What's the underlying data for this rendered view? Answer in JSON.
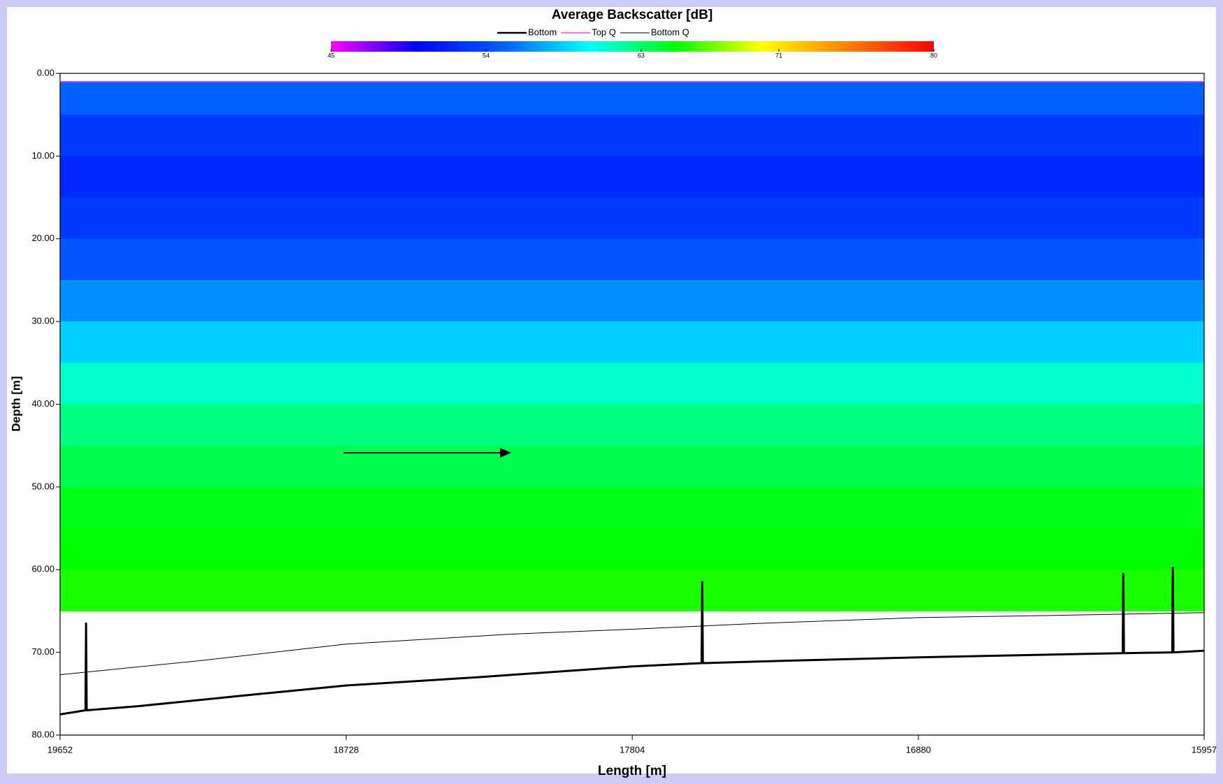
{
  "chart_data": {
    "type": "heatmap",
    "title": "Average Backscatter [dB]",
    "xlabel": "Length [m]",
    "ylabel": "Depth [m]",
    "xlim": [
      19652,
      15957
    ],
    "xticks": [
      19652,
      18728,
      17804,
      16880,
      15957
    ],
    "ylim": [
      0,
      80
    ],
    "yticks": [
      {
        "value": 0,
        "label": "0.00"
      },
      {
        "value": 10,
        "label": "10.00"
      },
      {
        "value": 20,
        "label": "20.00"
      },
      {
        "value": 30,
        "label": "30.00"
      },
      {
        "value": 40,
        "label": "40.00"
      },
      {
        "value": 50,
        "label": "50.00"
      },
      {
        "value": 60,
        "label": "60.00"
      },
      {
        "value": 70,
        "label": "70.00"
      },
      {
        "value": 80,
        "label": "80.00"
      }
    ],
    "colorbar": {
      "lim": [
        45,
        80
      ],
      "ticks": [
        45,
        54,
        63,
        71,
        80
      ],
      "colormap": [
        "#ff00ff",
        "#0000ff",
        "#0060ff",
        "#00ffff",
        "#00ff00",
        "#ffff00",
        "#ff8000",
        "#ff0000"
      ]
    },
    "profile": {
      "bins": [
        1,
        5,
        10,
        15,
        20,
        25,
        30,
        35,
        40,
        45,
        50,
        55,
        60,
        65
      ],
      "values": [
        55,
        53,
        52,
        53,
        54.5,
        56.5,
        58.5,
        61,
        62.5,
        63.5,
        64.5,
        65,
        65.5
      ]
    },
    "series": [
      {
        "name": "Bottom",
        "color": "#000000",
        "width": 3,
        "x": [
          19652,
          19570,
          19568,
          19566,
          19400,
          19000,
          18728,
          18300,
          17804,
          17580,
          17578,
          17576,
          17300,
          16880,
          16500,
          16220,
          16218,
          16216,
          16060,
          16058,
          16056,
          15957
        ],
        "values": [
          77.5,
          77,
          66.5,
          77,
          76.5,
          75,
          74,
          73,
          71.7,
          71.3,
          61.5,
          71.3,
          71,
          70.6,
          70.3,
          70.1,
          60.5,
          70.1,
          70,
          59.8,
          70,
          69.8
        ]
      },
      {
        "name": "Top Q",
        "color": "#ff40ff",
        "width": 1.5,
        "x": [
          19652,
          15957
        ],
        "values": [
          1,
          1
        ]
      },
      {
        "name": "Bottom Q",
        "color": "#000000",
        "width": 1,
        "x": [
          19652,
          19200,
          18728,
          18200,
          17804,
          17400,
          16880,
          16400,
          15957
        ],
        "values": [
          72.7,
          71,
          69,
          67.8,
          67.2,
          66.5,
          65.8,
          65.5,
          65.2
        ]
      }
    ]
  }
}
